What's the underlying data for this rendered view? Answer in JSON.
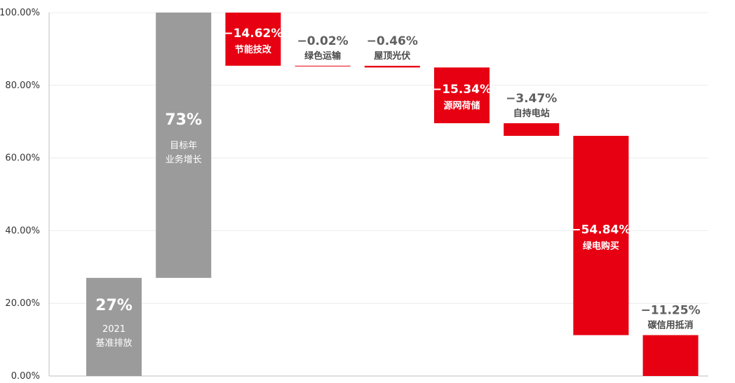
{
  "chart_data": {
    "type": "bar",
    "subtype": "waterfall",
    "ylim": [
      0,
      100
    ],
    "y_ticks": [
      "0.00%",
      "20.00%",
      "40.00%",
      "60.00%",
      "80.00%",
      "100.00%"
    ],
    "grid": true,
    "colors": {
      "base": "#9b9b9b",
      "increase": "#9b9b9b",
      "decrease": "#e60012",
      "label_dark": "#5f5f5f",
      "label_light": "#ffffff"
    },
    "bars": [
      {
        "value_label": "27%",
        "name": "2021\n基准排放",
        "start": 0,
        "end": 27,
        "kind": "base"
      },
      {
        "value_label": "73%",
        "name": "目标年\n业务增长",
        "start": 27,
        "end": 100,
        "kind": "increase"
      },
      {
        "value_label": "−14.62%",
        "name": "节能技改",
        "start": 100,
        "end": 85.38,
        "kind": "decrease"
      },
      {
        "value_label": "−0.02%",
        "name": "绿色运输",
        "start": 85.38,
        "end": 85.36,
        "kind": "decrease"
      },
      {
        "value_label": "−0.46%",
        "name": "屋顶光伏",
        "start": 85.36,
        "end": 84.9,
        "kind": "decrease"
      },
      {
        "value_label": "−15.34%",
        "name": "源网荷储",
        "start": 84.9,
        "end": 69.56,
        "kind": "decrease"
      },
      {
        "value_label": "−3.47%",
        "name": "自持电站",
        "start": 69.56,
        "end": 66.09,
        "kind": "decrease"
      },
      {
        "value_label": "−54.84%",
        "name": "绿电购买",
        "start": 66.09,
        "end": 11.25,
        "kind": "decrease"
      },
      {
        "value_label": "−11.25%",
        "name": "碳信用抵消",
        "start": 11.25,
        "end": 0,
        "kind": "decrease"
      }
    ]
  }
}
